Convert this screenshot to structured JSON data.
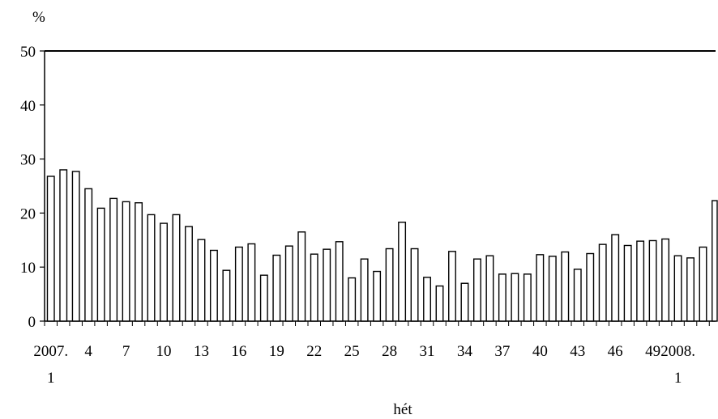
{
  "chart_data": {
    "type": "bar",
    "title": "",
    "ylabel": "%",
    "xlabel": "hét",
    "ylim": [
      0,
      50
    ],
    "yticks": [
      0,
      10,
      20,
      30,
      40,
      50
    ],
    "xtick_labels": [
      {
        "index": 0,
        "line1": "2007.",
        "line2": "1"
      },
      {
        "index": 3,
        "line1": "4"
      },
      {
        "index": 6,
        "line1": "7"
      },
      {
        "index": 9,
        "line1": "10"
      },
      {
        "index": 12,
        "line1": "13"
      },
      {
        "index": 15,
        "line1": "16"
      },
      {
        "index": 18,
        "line1": "19"
      },
      {
        "index": 21,
        "line1": "22"
      },
      {
        "index": 24,
        "line1": "25"
      },
      {
        "index": 27,
        "line1": "28"
      },
      {
        "index": 30,
        "line1": "31"
      },
      {
        "index": 33,
        "line1": "34"
      },
      {
        "index": 36,
        "line1": "37"
      },
      {
        "index": 39,
        "line1": "40"
      },
      {
        "index": 42,
        "line1": "43"
      },
      {
        "index": 45,
        "line1": "46"
      },
      {
        "index": 48,
        "line1": "49"
      },
      {
        "index": 50,
        "line1": "2008.",
        "line2": "1"
      }
    ],
    "values": [
      26.8,
      28.0,
      27.7,
      24.5,
      20.9,
      22.7,
      22.1,
      21.9,
      19.7,
      18.1,
      19.7,
      17.5,
      15.1,
      13.1,
      9.4,
      13.7,
      14.3,
      8.5,
      12.2,
      13.9,
      16.5,
      12.4,
      13.3,
      14.7,
      8.0,
      11.5,
      9.2,
      13.4,
      18.3,
      13.4,
      8.1,
      6.5,
      12.9,
      7.0,
      11.5,
      12.1,
      8.7,
      8.8,
      8.7,
      12.3,
      12.0,
      12.8,
      9.6,
      12.5,
      14.2,
      16.0,
      14.0,
      14.8,
      14.9,
      15.2,
      12.1,
      11.7,
      13.7,
      22.3
    ],
    "colors": {
      "bar_fill": "#ffffff",
      "bar_stroke": "#000000",
      "axis": "#000000"
    }
  }
}
